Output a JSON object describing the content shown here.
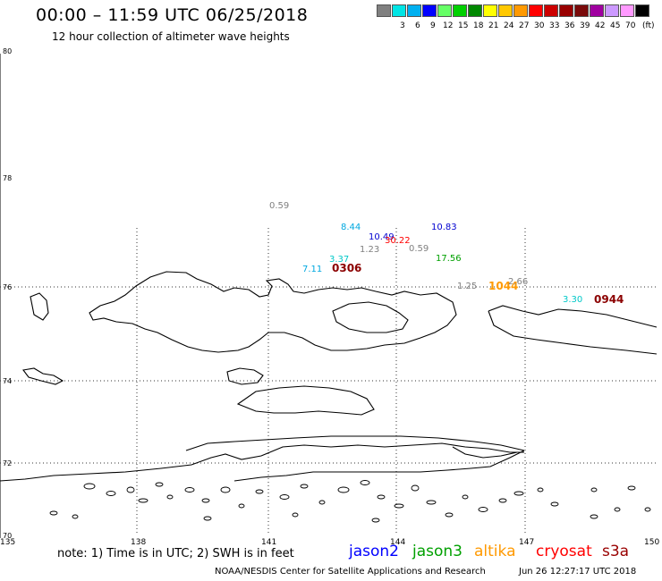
{
  "header": {
    "title": "00:00 – 11:59 UTC 06/25/2018",
    "subtitle": "12 hour collection of altimeter wave heights"
  },
  "legend": {
    "unit": "(ft)",
    "items": [
      {
        "label": "",
        "color": "#808080"
      },
      {
        "label": "3",
        "color": "#00e5e5"
      },
      {
        "label": "6",
        "color": "#00b0f0"
      },
      {
        "label": "9",
        "color": "#0000ff"
      },
      {
        "label": "12",
        "color": "#66ff66"
      },
      {
        "label": "15",
        "color": "#00d000"
      },
      {
        "label": "18",
        "color": "#008800"
      },
      {
        "label": "21",
        "color": "#ffff00"
      },
      {
        "label": "24",
        "color": "#ffc800"
      },
      {
        "label": "27",
        "color": "#ff9900"
      },
      {
        "label": "30",
        "color": "#ff0000"
      },
      {
        "label": "33",
        "color": "#cc0000"
      },
      {
        "label": "36",
        "color": "#990000"
      },
      {
        "label": "39",
        "color": "#7a0a0a"
      },
      {
        "label": "42",
        "color": "#a000a0"
      },
      {
        "label": "45",
        "color": "#cc99ff"
      },
      {
        "label": "70",
        "color": "#ff99ff"
      },
      {
        "label": "",
        "color": "#000000"
      }
    ]
  },
  "axes": {
    "lat_labels": [
      "80",
      "78",
      "76",
      "74",
      "72",
      "70"
    ],
    "lon_labels": [
      "135",
      "138",
      "141",
      "144",
      "147",
      "150"
    ]
  },
  "observations": [
    {
      "text": "0.59",
      "color": "#808080"
    },
    {
      "text": "8.44",
      "color": "#00a8e0"
    },
    {
      "text": "10.49",
      "color": "#0000d0"
    },
    {
      "text": "10.83",
      "color": "#0000d0"
    },
    {
      "text": "30.22",
      "color": "#ff0000"
    },
    {
      "text": "1.23",
      "color": "#808080"
    },
    {
      "text": "0.59",
      "color": "#808080"
    },
    {
      "text": "3.37",
      "color": "#00c8c8"
    },
    {
      "text": "17.56",
      "color": "#00a000"
    },
    {
      "text": "7.11",
      "color": "#00a8e0"
    },
    {
      "text": "0306",
      "color": "#8b0000"
    },
    {
      "text": "1.25",
      "color": "#808080"
    },
    {
      "text": "1044",
      "color": "#ff9900"
    },
    {
      "text": "2.66",
      "color": "#808080"
    },
    {
      "text": "3.30",
      "color": "#00c8c8"
    },
    {
      "text": "0944",
      "color": "#8b0000"
    }
  ],
  "footer": {
    "note": "note: 1) Time is in UTC; 2) SWH is in feet",
    "satellites": [
      {
        "name": "jason2",
        "color": "#0000ff"
      },
      {
        "name": "jason3",
        "color": "#00a000"
      },
      {
        "name": "altika",
        "color": "#ff9900"
      },
      {
        "name": "cryosat",
        "color": "#ff0000"
      },
      {
        "name": "s3a",
        "color": "#990000"
      }
    ],
    "credit": "NOAA/NESDIS Center for Satellite Applications and Research",
    "timestamp": "Jun 26 12:27:17 UTC 2018"
  }
}
